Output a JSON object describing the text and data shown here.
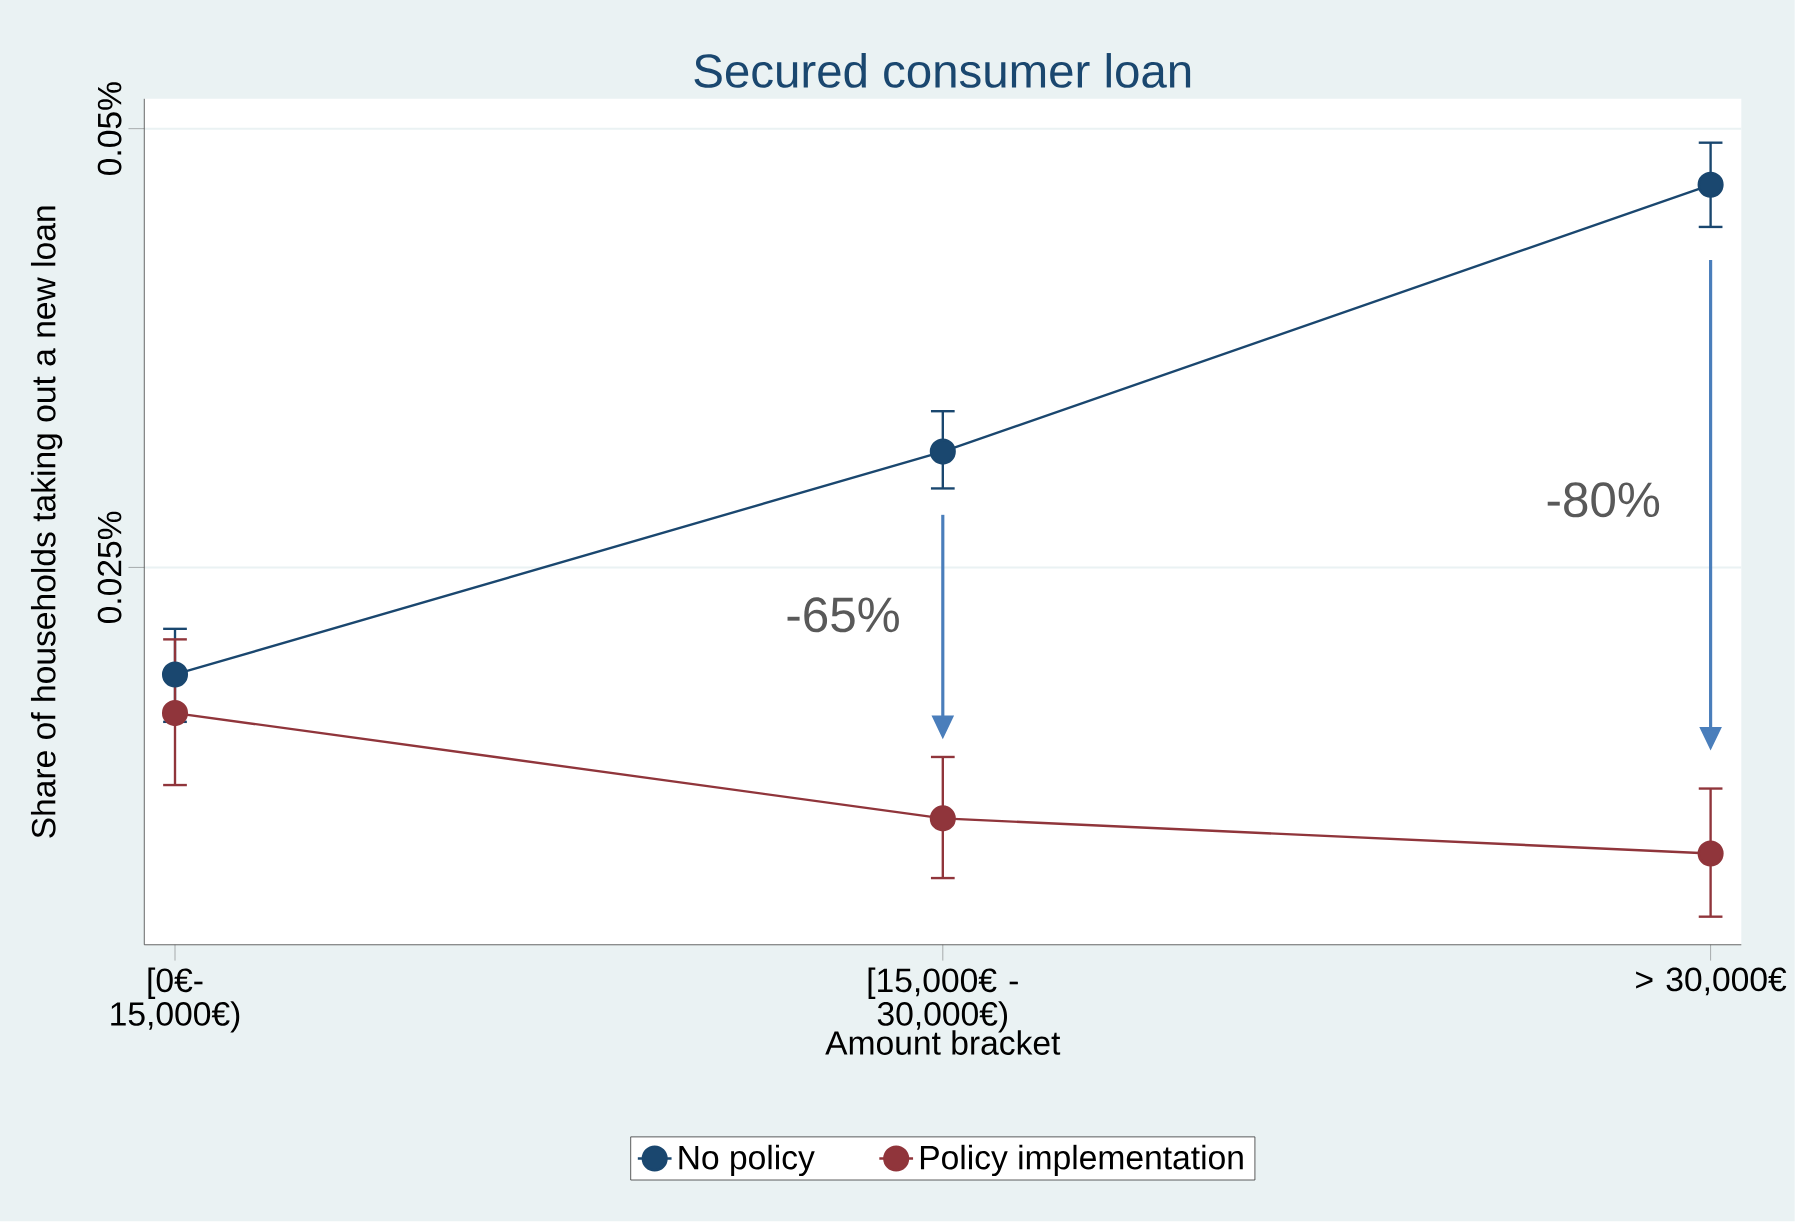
{
  "chart_data": {
    "type": "line",
    "title": "Secured consumer loan",
    "xlabel": "Amount bracket",
    "ylabel": "Share of households taking out a new loan",
    "categories": [
      "[0€- 15,000€)",
      "[15,000€ - 30,000€)",
      "> 30,000€"
    ],
    "series": [
      {
        "name": "No policy",
        "color": "#1a476f",
        "values": [
          0.0189,
          0.0316,
          0.0468
        ],
        "errors": [
          [
            0.0162,
            0.0215
          ],
          [
            0.0295,
            0.0339
          ],
          [
            0.0444,
            0.0492
          ]
        ]
      },
      {
        "name": "Policy implementation",
        "color": "#90353b",
        "values": [
          0.0167,
          0.0107,
          0.0087
        ],
        "errors": [
          [
            0.0126,
            0.0209
          ],
          [
            0.0073,
            0.0142
          ],
          [
            0.0051,
            0.0124
          ]
        ]
      }
    ],
    "ylim": [
      0.0035,
      0.0517
    ],
    "yticks": [
      {
        "value": 0.025,
        "label": "0.025%"
      },
      {
        "value": 0.05,
        "label": "0.05%"
      }
    ],
    "grid": "y",
    "legend": "bottom",
    "marker": "circle",
    "line_style": "solid",
    "annotations": [
      "-65%",
      "-80%"
    ]
  }
}
